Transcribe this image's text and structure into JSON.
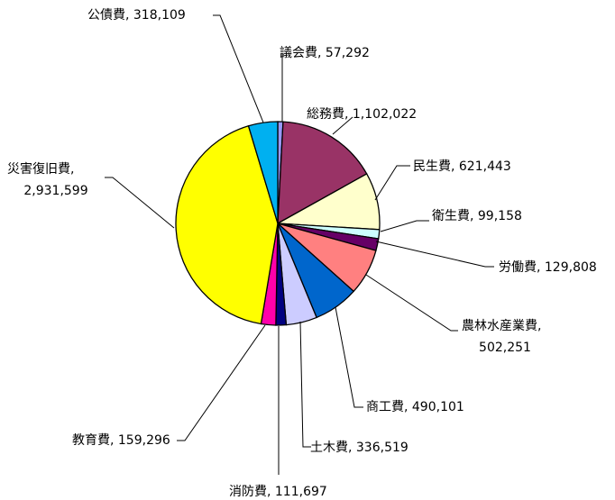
{
  "chart_data": {
    "type": "pie",
    "slices": [
      {
        "name": "議会費",
        "value": 57292,
        "label": "議会費, 57,292",
        "color": "#9999FF"
      },
      {
        "name": "総務費",
        "value": 1102022,
        "label": "総務費, 1,102,022",
        "color": "#993366"
      },
      {
        "name": "民生費",
        "value": 621443,
        "label": "民生費, 621,443",
        "color": "#FFFFCC"
      },
      {
        "name": "衛生費",
        "value": 99158,
        "label": "衛生費, 99,158",
        "color": "#CCFFFF"
      },
      {
        "name": "労働費",
        "value": 129808,
        "label": "労働費, 129,808",
        "color": "#660066"
      },
      {
        "name": "農林水産業費",
        "value": 502251,
        "label_lines": [
          "農林水産業費,",
          "502,251"
        ],
        "color": "#FF8080"
      },
      {
        "name": "商工費",
        "value": 490101,
        "label": "商工費, 490,101",
        "color": "#0066CC"
      },
      {
        "name": "土木費",
        "value": 336519,
        "label": "土木費, 336,519",
        "color": "#CCCCFF"
      },
      {
        "name": "消防費",
        "value": 111697,
        "label": "消防費, 111,697",
        "color": "#000080"
      },
      {
        "name": "教育費",
        "value": 159296,
        "label": "教育費, 159,296",
        "color": "#FF00AA"
      },
      {
        "name": "災害復旧費",
        "value": 2931599,
        "label_lines": [
          "災害復旧費,",
          "2,931,599"
        ],
        "color": "#FFFF00"
      },
      {
        "name": "公債費",
        "value": 318109,
        "label": "公債費, 318,109",
        "color": "#00B0F0"
      }
    ],
    "start": "12 o'clock",
    "direction": "clockwise",
    "legend": "none",
    "labels": "outside with leader lines"
  }
}
